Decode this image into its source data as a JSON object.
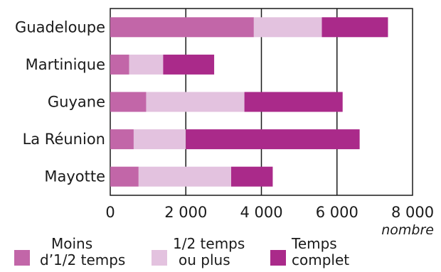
{
  "chart_data": {
    "type": "bar",
    "orientation": "horizontal",
    "stacked": true,
    "categories": [
      "Guadeloupe",
      "Martinique",
      "Guyane",
      "La Réunion",
      "Mayotte"
    ],
    "series": [
      {
        "name": "Moins d'1/2 temps",
        "color": "#c266a8",
        "values": [
          3800,
          500,
          950,
          620,
          750
        ]
      },
      {
        "name": "1/2 temps ou plus",
        "color": "#e3c2df",
        "values": [
          1800,
          900,
          2600,
          1380,
          2450
        ]
      },
      {
        "name": "Temps complet",
        "color": "#aa2a8a",
        "values": [
          1750,
          1350,
          2600,
          4600,
          1100
        ]
      }
    ],
    "xlim": [
      0,
      8000
    ],
    "xticks": [
      0,
      2000,
      4000,
      6000,
      8000
    ],
    "xtick_labels": [
      "0",
      "2 000",
      "4 000",
      "6 000",
      "8 000"
    ],
    "xlabel": "nombre",
    "ylabel": "",
    "title": "",
    "grid": "vertical",
    "legend_position": "bottom"
  },
  "legend": [
    {
      "line1": "Moins",
      "line2": "d’1/2 temps",
      "color": "#c266a8"
    },
    {
      "line1": "1/2 temps",
      "line2": "ou plus",
      "color": "#e3c2df"
    },
    {
      "line1": "Temps",
      "line2": "complet",
      "color": "#aa2a8a"
    }
  ]
}
